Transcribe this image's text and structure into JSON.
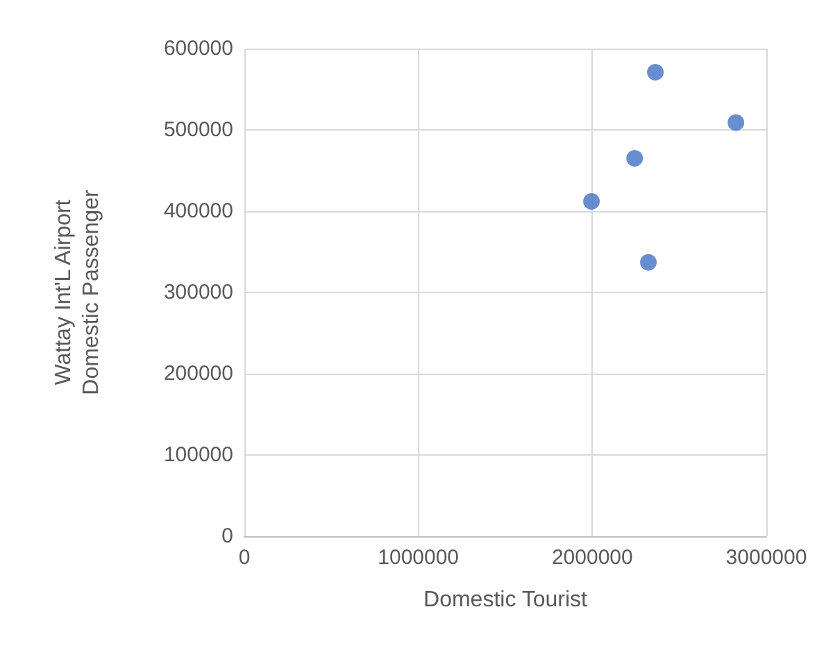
{
  "chart_data": {
    "type": "scatter",
    "xlabel": "Domestic Tourist",
    "ylabel": "Wattay Int'L Airport Domestic Passenger",
    "series": [
      {
        "color": "#4472c4",
        "x": [
          2362000,
          2825000,
          2243000,
          1995000,
          2322000
        ],
        "values": [
          571000,
          509000,
          465000,
          412000,
          337000
        ]
      }
    ],
    "xlim": [
      0,
      3000000
    ],
    "xticks": [
      0,
      1000000,
      2000000,
      3000000
    ],
    "ylim": [
      0,
      600000
    ],
    "yticks": [
      0,
      100000,
      200000,
      300000,
      400000,
      500000,
      600000
    ],
    "grid": true,
    "marker": "circle"
  }
}
